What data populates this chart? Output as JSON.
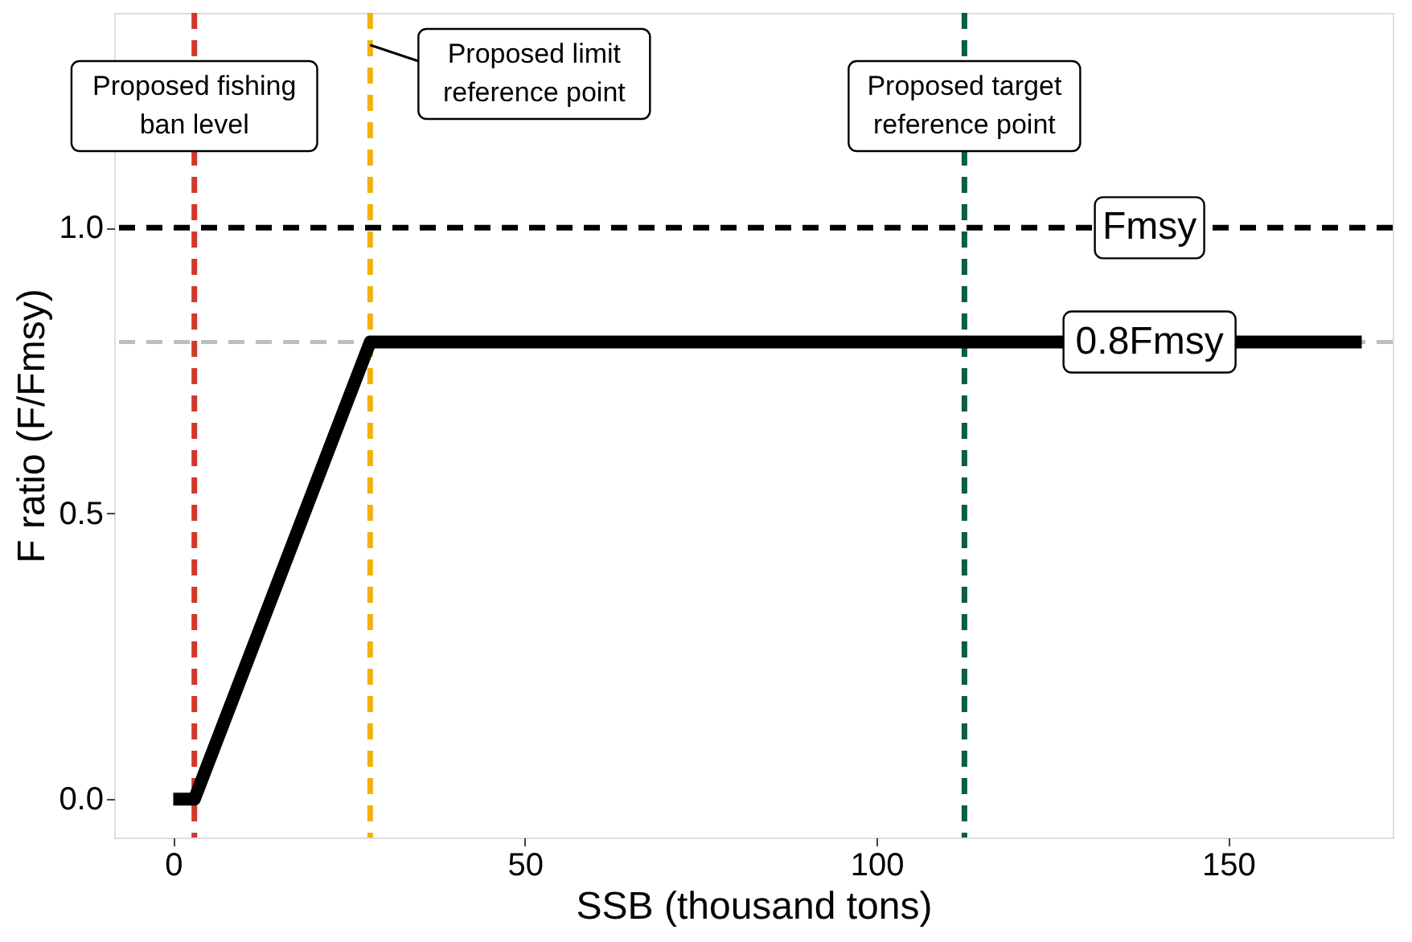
{
  "chart_data": {
    "type": "line",
    "xlabel": "SSB (thousand tons)",
    "ylabel": "F ratio (F/Fmsy)",
    "series": [
      {
        "color": "#000000",
        "x": [
          0,
          3,
          28,
          169
        ],
        "values": [
          0,
          0,
          0.8,
          0.8
        ]
      }
    ],
    "xlim": [
      -8.4,
      173.4
    ],
    "xticks": [
      0,
      50,
      100,
      150
    ],
    "ylim": [
      -0.067,
      1.376
    ],
    "yticks": [
      {
        "value": 0,
        "label": "0.0"
      },
      {
        "value": 0.5,
        "label": "0.5"
      },
      {
        "value": 1,
        "label": "1.0"
      }
    ],
    "ref_lines": [
      {
        "axis": "x",
        "value": 3,
        "label": "Proposed fishing\nban level",
        "color": "#d0392b",
        "line_style": "dashed"
      },
      {
        "axis": "x",
        "value": 28,
        "label": "Proposed limit\nreference point",
        "color": "#f1b20f",
        "line_style": "dashed"
      },
      {
        "axis": "x",
        "value": 112.5,
        "label": "Proposed target\nreference point",
        "color": "#0b5d45",
        "line_style": "dashed"
      },
      {
        "axis": "y",
        "value": 1,
        "label": "Fmsy",
        "color": "#000000",
        "line_style": "dashed"
      },
      {
        "axis": "y",
        "value": 0.8,
        "label": "0.8Fmsy",
        "color": "#bdbdbd",
        "line_style": "dashed"
      }
    ],
    "grid": false,
    "marker": "none",
    "line_style": "solid"
  }
}
